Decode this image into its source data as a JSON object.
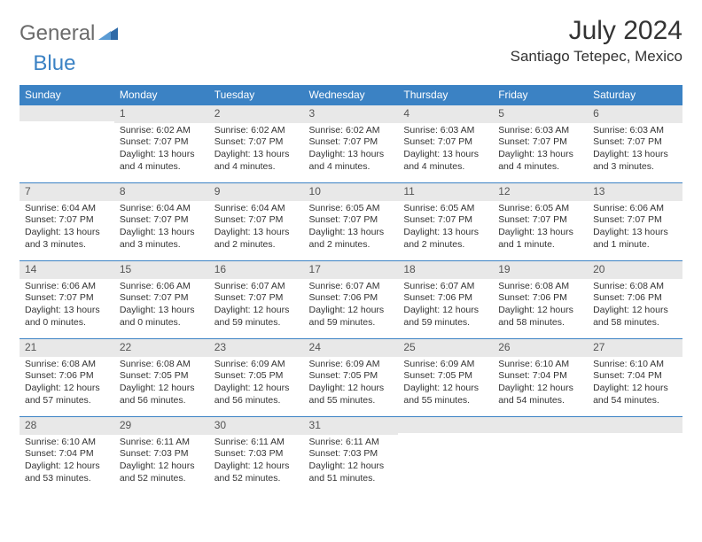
{
  "logo": {
    "text1": "General",
    "text2": "Blue"
  },
  "title": "July 2024",
  "location": "Santiago Tetepec, Mexico",
  "daysOfWeek": [
    "Sunday",
    "Monday",
    "Tuesday",
    "Wednesday",
    "Thursday",
    "Friday",
    "Saturday"
  ],
  "colors": {
    "headerBar": "#3b82c4",
    "dayNumBg": "#e8e8e8",
    "logoGray": "#6b6b6b",
    "logoBlue": "#3b82c4"
  },
  "weeks": [
    [
      null,
      {
        "n": "1",
        "sunrise": "Sunrise: 6:02 AM",
        "sunset": "Sunset: 7:07 PM",
        "daylight1": "Daylight: 13 hours",
        "daylight2": "and 4 minutes."
      },
      {
        "n": "2",
        "sunrise": "Sunrise: 6:02 AM",
        "sunset": "Sunset: 7:07 PM",
        "daylight1": "Daylight: 13 hours",
        "daylight2": "and 4 minutes."
      },
      {
        "n": "3",
        "sunrise": "Sunrise: 6:02 AM",
        "sunset": "Sunset: 7:07 PM",
        "daylight1": "Daylight: 13 hours",
        "daylight2": "and 4 minutes."
      },
      {
        "n": "4",
        "sunrise": "Sunrise: 6:03 AM",
        "sunset": "Sunset: 7:07 PM",
        "daylight1": "Daylight: 13 hours",
        "daylight2": "and 4 minutes."
      },
      {
        "n": "5",
        "sunrise": "Sunrise: 6:03 AM",
        "sunset": "Sunset: 7:07 PM",
        "daylight1": "Daylight: 13 hours",
        "daylight2": "and 4 minutes."
      },
      {
        "n": "6",
        "sunrise": "Sunrise: 6:03 AM",
        "sunset": "Sunset: 7:07 PM",
        "daylight1": "Daylight: 13 hours",
        "daylight2": "and 3 minutes."
      }
    ],
    [
      {
        "n": "7",
        "sunrise": "Sunrise: 6:04 AM",
        "sunset": "Sunset: 7:07 PM",
        "daylight1": "Daylight: 13 hours",
        "daylight2": "and 3 minutes."
      },
      {
        "n": "8",
        "sunrise": "Sunrise: 6:04 AM",
        "sunset": "Sunset: 7:07 PM",
        "daylight1": "Daylight: 13 hours",
        "daylight2": "and 3 minutes."
      },
      {
        "n": "9",
        "sunrise": "Sunrise: 6:04 AM",
        "sunset": "Sunset: 7:07 PM",
        "daylight1": "Daylight: 13 hours",
        "daylight2": "and 2 minutes."
      },
      {
        "n": "10",
        "sunrise": "Sunrise: 6:05 AM",
        "sunset": "Sunset: 7:07 PM",
        "daylight1": "Daylight: 13 hours",
        "daylight2": "and 2 minutes."
      },
      {
        "n": "11",
        "sunrise": "Sunrise: 6:05 AM",
        "sunset": "Sunset: 7:07 PM",
        "daylight1": "Daylight: 13 hours",
        "daylight2": "and 2 minutes."
      },
      {
        "n": "12",
        "sunrise": "Sunrise: 6:05 AM",
        "sunset": "Sunset: 7:07 PM",
        "daylight1": "Daylight: 13 hours",
        "daylight2": "and 1 minute."
      },
      {
        "n": "13",
        "sunrise": "Sunrise: 6:06 AM",
        "sunset": "Sunset: 7:07 PM",
        "daylight1": "Daylight: 13 hours",
        "daylight2": "and 1 minute."
      }
    ],
    [
      {
        "n": "14",
        "sunrise": "Sunrise: 6:06 AM",
        "sunset": "Sunset: 7:07 PM",
        "daylight1": "Daylight: 13 hours",
        "daylight2": "and 0 minutes."
      },
      {
        "n": "15",
        "sunrise": "Sunrise: 6:06 AM",
        "sunset": "Sunset: 7:07 PM",
        "daylight1": "Daylight: 13 hours",
        "daylight2": "and 0 minutes."
      },
      {
        "n": "16",
        "sunrise": "Sunrise: 6:07 AM",
        "sunset": "Sunset: 7:07 PM",
        "daylight1": "Daylight: 12 hours",
        "daylight2": "and 59 minutes."
      },
      {
        "n": "17",
        "sunrise": "Sunrise: 6:07 AM",
        "sunset": "Sunset: 7:06 PM",
        "daylight1": "Daylight: 12 hours",
        "daylight2": "and 59 minutes."
      },
      {
        "n": "18",
        "sunrise": "Sunrise: 6:07 AM",
        "sunset": "Sunset: 7:06 PM",
        "daylight1": "Daylight: 12 hours",
        "daylight2": "and 59 minutes."
      },
      {
        "n": "19",
        "sunrise": "Sunrise: 6:08 AM",
        "sunset": "Sunset: 7:06 PM",
        "daylight1": "Daylight: 12 hours",
        "daylight2": "and 58 minutes."
      },
      {
        "n": "20",
        "sunrise": "Sunrise: 6:08 AM",
        "sunset": "Sunset: 7:06 PM",
        "daylight1": "Daylight: 12 hours",
        "daylight2": "and 58 minutes."
      }
    ],
    [
      {
        "n": "21",
        "sunrise": "Sunrise: 6:08 AM",
        "sunset": "Sunset: 7:06 PM",
        "daylight1": "Daylight: 12 hours",
        "daylight2": "and 57 minutes."
      },
      {
        "n": "22",
        "sunrise": "Sunrise: 6:08 AM",
        "sunset": "Sunset: 7:05 PM",
        "daylight1": "Daylight: 12 hours",
        "daylight2": "and 56 minutes."
      },
      {
        "n": "23",
        "sunrise": "Sunrise: 6:09 AM",
        "sunset": "Sunset: 7:05 PM",
        "daylight1": "Daylight: 12 hours",
        "daylight2": "and 56 minutes."
      },
      {
        "n": "24",
        "sunrise": "Sunrise: 6:09 AM",
        "sunset": "Sunset: 7:05 PM",
        "daylight1": "Daylight: 12 hours",
        "daylight2": "and 55 minutes."
      },
      {
        "n": "25",
        "sunrise": "Sunrise: 6:09 AM",
        "sunset": "Sunset: 7:05 PM",
        "daylight1": "Daylight: 12 hours",
        "daylight2": "and 55 minutes."
      },
      {
        "n": "26",
        "sunrise": "Sunrise: 6:10 AM",
        "sunset": "Sunset: 7:04 PM",
        "daylight1": "Daylight: 12 hours",
        "daylight2": "and 54 minutes."
      },
      {
        "n": "27",
        "sunrise": "Sunrise: 6:10 AM",
        "sunset": "Sunset: 7:04 PM",
        "daylight1": "Daylight: 12 hours",
        "daylight2": "and 54 minutes."
      }
    ],
    [
      {
        "n": "28",
        "sunrise": "Sunrise: 6:10 AM",
        "sunset": "Sunset: 7:04 PM",
        "daylight1": "Daylight: 12 hours",
        "daylight2": "and 53 minutes."
      },
      {
        "n": "29",
        "sunrise": "Sunrise: 6:11 AM",
        "sunset": "Sunset: 7:03 PM",
        "daylight1": "Daylight: 12 hours",
        "daylight2": "and 52 minutes."
      },
      {
        "n": "30",
        "sunrise": "Sunrise: 6:11 AM",
        "sunset": "Sunset: 7:03 PM",
        "daylight1": "Daylight: 12 hours",
        "daylight2": "and 52 minutes."
      },
      {
        "n": "31",
        "sunrise": "Sunrise: 6:11 AM",
        "sunset": "Sunset: 7:03 PM",
        "daylight1": "Daylight: 12 hours",
        "daylight2": "and 51 minutes."
      },
      null,
      null,
      null
    ]
  ]
}
